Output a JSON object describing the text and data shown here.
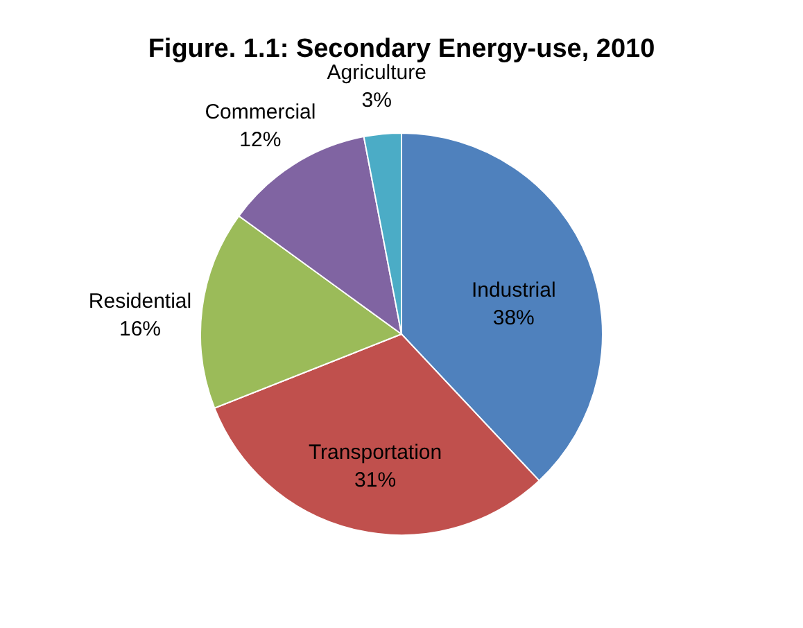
{
  "chart_data": {
    "type": "pie",
    "title": "Figure. 1.1: Secondary Energy-use, 2010",
    "categories": [
      "Industrial",
      "Transportation",
      "Residential",
      "Commercial",
      "Agriculture"
    ],
    "values": [
      38,
      31,
      16,
      12,
      3
    ],
    "value_labels": [
      "38%",
      "31%",
      "16%",
      "12%",
      "3%"
    ],
    "colors": [
      "#4f81bd",
      "#c0504d",
      "#9bbb59",
      "#8064a2",
      "#4bacc6"
    ],
    "legend": false
  }
}
